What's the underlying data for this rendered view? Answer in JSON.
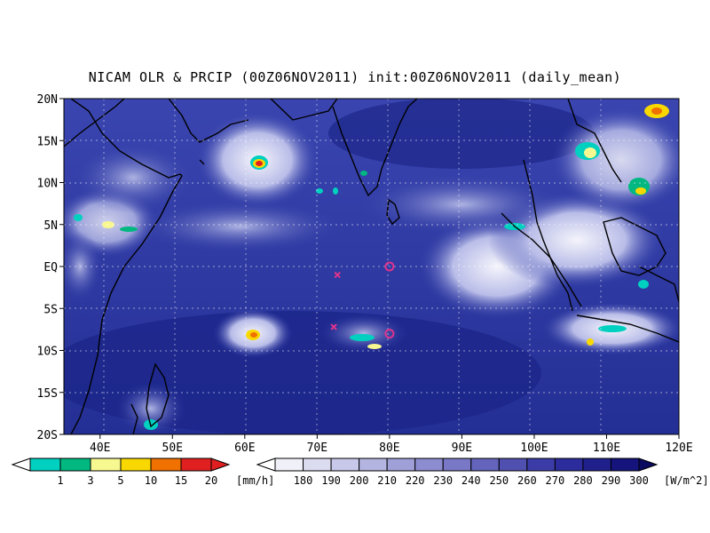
{
  "title": "NICAM OLR & PRCIP (00Z06NOV2011) init:00Z06NOV2011 (daily_mean)",
  "axes": {
    "x_ticks": [
      "40E",
      "50E",
      "60E",
      "70E",
      "80E",
      "90E",
      "100E",
      "110E",
      "120E"
    ],
    "y_ticks": [
      "20N",
      "15N",
      "10N",
      "5N",
      "EQ",
      "5S",
      "10S",
      "15S",
      "20S"
    ]
  },
  "colors": {
    "ocean_deep": "#1f2a8f",
    "ocean_mid": "#2e3aa6",
    "cloud_light": "#c9cdf0",
    "coast": "#000000",
    "marker": "#e0338c"
  },
  "precip_colorbar": {
    "labels": [
      "1",
      "3",
      "5",
      "10",
      "15",
      "20"
    ],
    "unit": "[mm/h]",
    "colors": [
      "#00d0c0",
      "#00b880",
      "#f8f890",
      "#f8d800",
      "#f07000",
      "#e02020"
    ]
  },
  "olr_colorbar": {
    "labels": [
      "180",
      "190",
      "200",
      "210",
      "220",
      "230",
      "240",
      "250",
      "260",
      "270",
      "280",
      "290",
      "300"
    ],
    "unit": "[W/m^2]",
    "colors": [
      "#f0f0f8",
      "#dcdcf0",
      "#c8c8ea",
      "#b4b4e0",
      "#a0a0d8",
      "#8c8cd0",
      "#7878c6",
      "#6464bc",
      "#5050b0",
      "#3c3ca8",
      "#2c2c9c",
      "#20208c",
      "#14147c"
    ]
  },
  "markers": [
    {
      "type": "x",
      "lon": 72.8,
      "lat": -1.0
    },
    {
      "type": "o",
      "lon": 80.0,
      "lat": 0.0
    },
    {
      "type": "x",
      "lon": 72.3,
      "lat": -7.2
    },
    {
      "type": "o",
      "lon": 80.0,
      "lat": -8.0
    }
  ]
}
